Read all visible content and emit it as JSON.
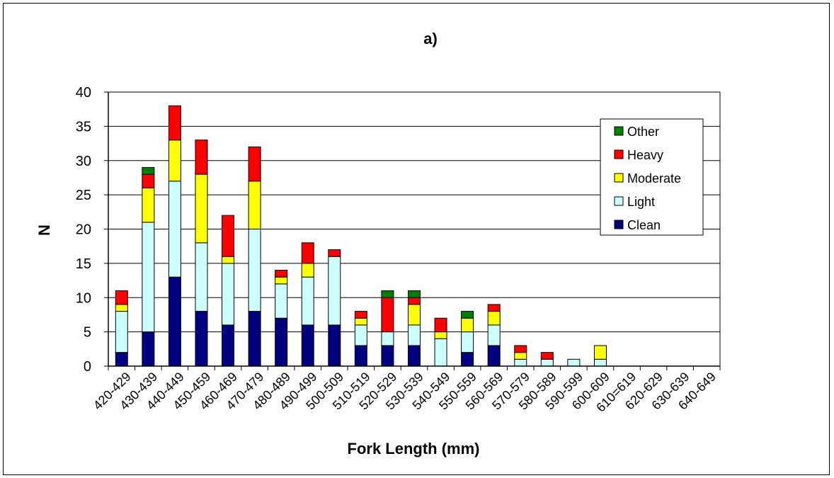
{
  "chart_data": {
    "type": "bar",
    "stacked": true,
    "title": "a)",
    "xlabel": "Fork Length (mm)",
    "ylabel": "N",
    "ylim": [
      0,
      40
    ],
    "yticks": [
      "0",
      "5",
      "10",
      "15",
      "20",
      "25",
      "30",
      "35",
      "40"
    ],
    "grid": "horizontal",
    "legend_position": "right",
    "categories": [
      "420-429",
      "430-439",
      "440-449",
      "450-459",
      "460-469",
      "470-479",
      "480-489",
      "490-499",
      "500-509",
      "510-519",
      "520-529",
      "530-539",
      "540-549",
      "550-559",
      "560-569",
      "570-579",
      "580-589",
      "590-599",
      "600-609",
      "610=619",
      "620-629",
      "630-639",
      "640-649"
    ],
    "series": [
      {
        "name": "Clean",
        "color": "#000080",
        "values": [
          2,
          5,
          13,
          8,
          6,
          8,
          7,
          6,
          6,
          3,
          3,
          3,
          0,
          2,
          3,
          0,
          0,
          0,
          0,
          0,
          0,
          0,
          0
        ]
      },
      {
        "name": "Light",
        "color": "#CCFFFF",
        "values": [
          6,
          16,
          14,
          10,
          9,
          12,
          5,
          7,
          10,
          3,
          2,
          3,
          4,
          3,
          3,
          1,
          1,
          1,
          1,
          0,
          0,
          0,
          0
        ]
      },
      {
        "name": "Moderate",
        "color": "#FFFF00",
        "values": [
          1,
          5,
          6,
          10,
          1,
          7,
          1,
          2,
          0,
          1,
          0,
          3,
          1,
          2,
          2,
          1,
          0,
          0,
          2,
          0,
          0,
          0,
          0
        ]
      },
      {
        "name": "Heavy",
        "color": "#FF0000",
        "values": [
          2,
          2,
          5,
          5,
          6,
          5,
          1,
          3,
          1,
          1,
          5,
          1,
          2,
          0,
          1,
          1,
          1,
          0,
          0,
          0,
          0,
          0,
          0
        ]
      },
      {
        "name": "Other",
        "color": "#008000",
        "values": [
          0,
          1,
          0,
          0,
          0,
          0,
          0,
          0,
          0,
          0,
          1,
          1,
          0,
          1,
          0,
          0,
          0,
          0,
          0,
          0,
          0,
          0,
          0
        ]
      }
    ],
    "legend_order": [
      "Other",
      "Heavy",
      "Moderate",
      "Light",
      "Clean"
    ]
  }
}
